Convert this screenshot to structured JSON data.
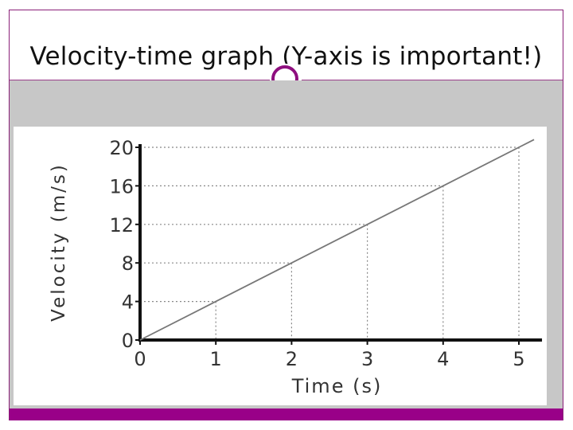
{
  "slide": {
    "title": "Velocity-time graph (Y-axis is important!)",
    "colors": {
      "accent": "#990088",
      "content_bg": "#c7c7c7",
      "rule": "#9a3d8a"
    }
  },
  "chart_data": {
    "type": "line",
    "title": "",
    "xlabel": "Time (s)",
    "ylabel": "Velocity (m/s)",
    "x_ticks": [
      "0",
      "1",
      "2",
      "3",
      "4",
      "5"
    ],
    "y_ticks": [
      "0",
      "4",
      "8",
      "12",
      "16",
      "20"
    ],
    "xlim": [
      0,
      5.2
    ],
    "ylim": [
      0,
      20
    ],
    "grid": "dotted guide lines from integer points to axes",
    "series": [
      {
        "x": [
          0,
          1,
          2,
          3,
          4,
          5,
          5.2
        ],
        "y": [
          0,
          4,
          8,
          12,
          16,
          20,
          20.8
        ]
      }
    ],
    "guide_points": [
      {
        "x": 1,
        "y": 4
      },
      {
        "x": 2,
        "y": 8
      },
      {
        "x": 3,
        "y": 12
      },
      {
        "x": 4,
        "y": 16
      },
      {
        "x": 5,
        "y": 20
      }
    ]
  }
}
